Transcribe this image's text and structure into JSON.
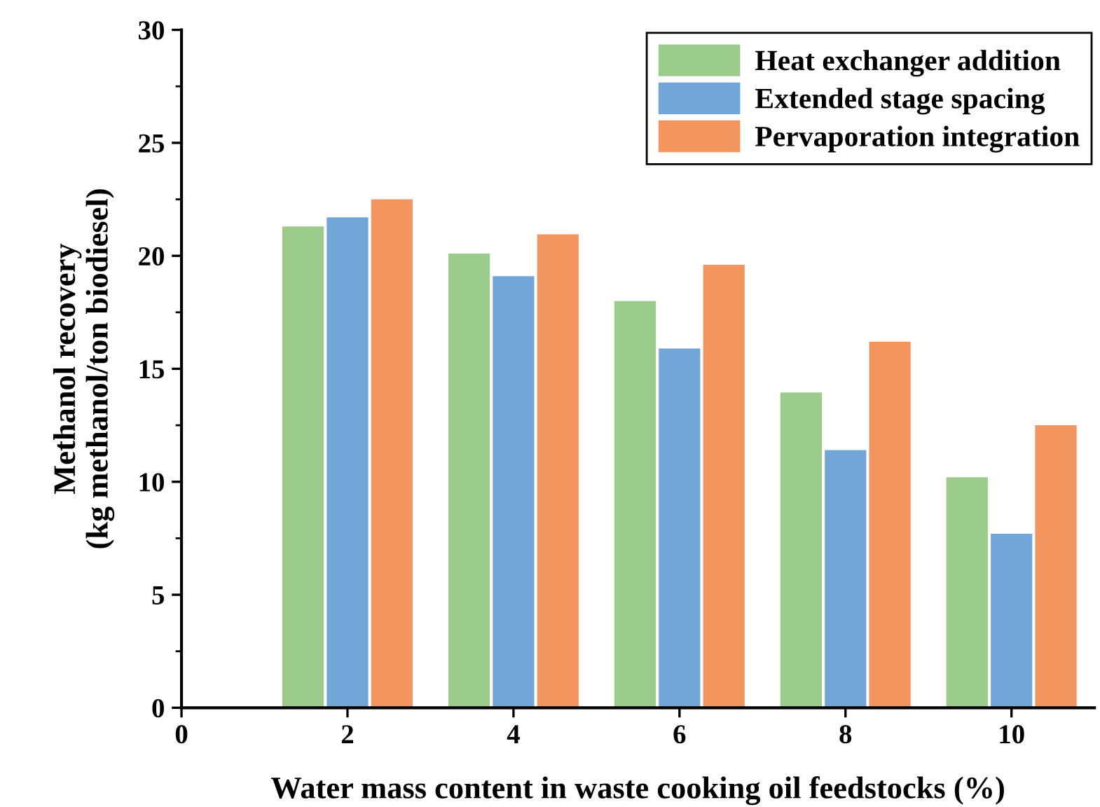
{
  "chart_data": {
    "type": "bar",
    "xlabel": "Water mass content in waste cooking oil feedstocks (%)",
    "ylabel": "Methanol recovery\n(kg methanol/ton biodiesel)",
    "x": [
      2,
      4,
      6,
      8,
      10
    ],
    "series": [
      {
        "name": "Heat exchanger addition",
        "color": "#9ccc8c",
        "values": [
          21.3,
          20.1,
          18.0,
          13.95,
          10.2
        ]
      },
      {
        "name": "Extended stage spacing",
        "color": "#72a6d8",
        "values": [
          21.7,
          19.1,
          15.9,
          11.4,
          7.7
        ]
      },
      {
        "name": "Pervaporation integration",
        "color": "#f2955f",
        "values": [
          22.5,
          20.95,
          19.6,
          16.2,
          12.5
        ]
      }
    ],
    "xlim": [
      0,
      11
    ],
    "xticks": [
      0,
      2,
      4,
      6,
      8,
      10
    ],
    "ylim": [
      0,
      30
    ],
    "yticks": [
      0,
      5,
      10,
      15,
      20,
      25,
      30
    ],
    "grid": false,
    "legend": "top right"
  }
}
